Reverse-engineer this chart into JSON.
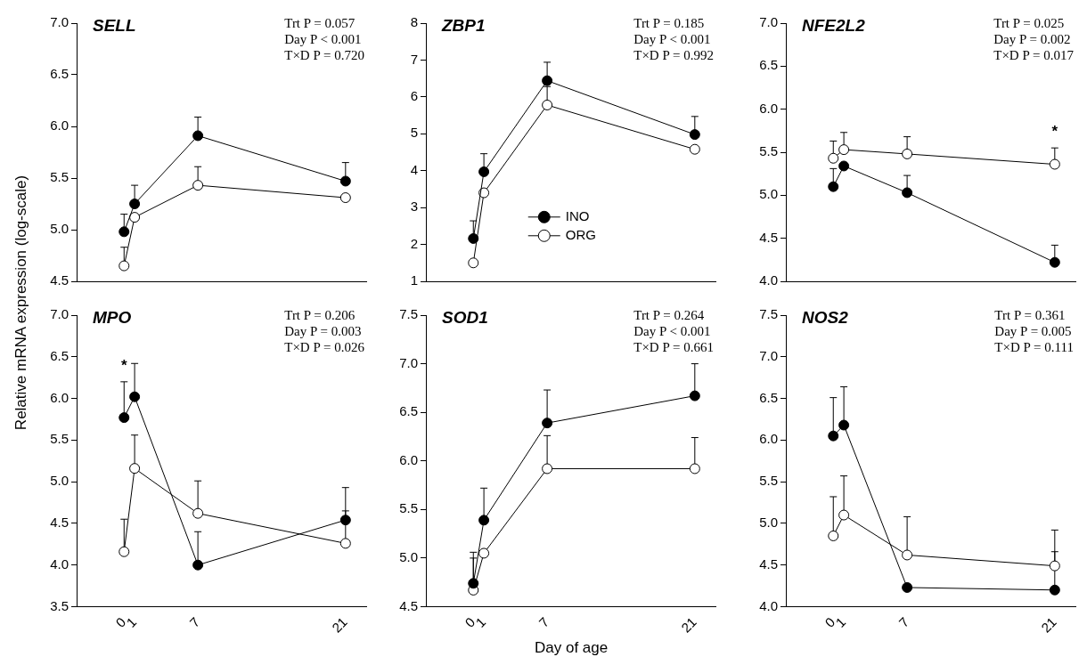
{
  "chart_data": [
    {
      "type": "line",
      "title": "SELL",
      "ylabel": "Relative mRNA expression (log-scale)",
      "x": [
        0,
        1,
        7,
        21
      ],
      "xlim": [
        -4.5,
        23
      ],
      "xticks": [
        0,
        1,
        7,
        21
      ],
      "ylim": [
        4.5,
        7.0
      ],
      "yticks": [
        {
          "value": 4.5,
          "label": "4.5"
        },
        {
          "value": 5,
          "label": "5.0"
        },
        {
          "value": 5.5,
          "label": "5.5"
        },
        {
          "value": 6,
          "label": "6.0"
        },
        {
          "value": 6.5,
          "label": "6.5"
        },
        {
          "value": 7,
          "label": "7.0"
        }
      ],
      "tick_labels": "y",
      "marker": "circle",
      "line_style": "solid",
      "annotations": [
        "Trt P = 0.057",
        "Day P < 0.001",
        "T×D P = 0.720"
      ],
      "series": [
        {
          "color": "#000000",
          "values": [
            4.98,
            5.25,
            5.91,
            5.47
          ],
          "errors": [
            [
              4.98,
              5.15
            ],
            [
              5.25,
              5.43
            ],
            [
              5.91,
              6.09
            ],
            [
              5.47,
              5.65
            ]
          ]
        },
        {
          "color": "#ffffff",
          "values": [
            4.65,
            5.12,
            5.43,
            5.31
          ],
          "errors": [
            [
              4.65,
              4.83
            ],
            null,
            [
              5.43,
              5.61
            ],
            null
          ]
        }
      ]
    },
    {
      "type": "line",
      "title": "ZBP1",
      "x": [
        0,
        1,
        7,
        21
      ],
      "xlim": [
        -4.5,
        23
      ],
      "xticks": [
        0,
        1,
        7,
        21
      ],
      "ylim": [
        1,
        8
      ],
      "yticks": [
        1,
        2,
        3,
        4,
        5,
        6,
        7,
        8
      ],
      "tick_labels": "y",
      "marker": "circle",
      "line_style": "solid",
      "legend": "bottom",
      "annotations": [
        "Trt P = 0.185",
        "Day P < 0.001",
        "T×D P = 0.992"
      ],
      "series": [
        {
          "name": "INO",
          "color": "#000000",
          "values": [
            2.16,
            3.97,
            6.44,
            4.98
          ],
          "errors": [
            [
              2.16,
              2.64
            ],
            [
              3.97,
              4.46
            ],
            [
              6.44,
              6.94
            ],
            [
              4.98,
              5.47
            ]
          ]
        },
        {
          "name": "ORG",
          "color": "#ffffff",
          "values": [
            1.5,
            3.4,
            5.78,
            4.58
          ],
          "errors": [
            null,
            null,
            [
              5.78,
              6.28
            ],
            null
          ]
        }
      ]
    },
    {
      "type": "line",
      "title": "NFE2L2",
      "x": [
        0,
        1,
        7,
        21
      ],
      "xlim": [
        -4.5,
        23
      ],
      "xticks": [
        0,
        1,
        7,
        21
      ],
      "ylim": [
        4.0,
        7.0
      ],
      "yticks": [
        {
          "value": 4,
          "label": "4.0"
        },
        {
          "value": 4.5,
          "label": "4.5"
        },
        {
          "value": 5,
          "label": "5.0"
        },
        {
          "value": 5.5,
          "label": "5.5"
        },
        {
          "value": 6,
          "label": "6.0"
        },
        {
          "value": 6.5,
          "label": "6.5"
        },
        {
          "value": 7,
          "label": "7.0"
        }
      ],
      "tick_labels": "y",
      "marker": "circle",
      "line_style": "solid",
      "annotations": [
        "Trt P = 0.025",
        "Day P = 0.002",
        "T×D P = 0.017",
        {
          "text": "*",
          "x": 21,
          "y": 5.55
        }
      ],
      "series": [
        {
          "color": "#000000",
          "values": [
            5.1,
            5.34,
            5.03,
            4.22
          ],
          "errors": [
            [
              5.1,
              5.31
            ],
            null,
            [
              5.03,
              5.23
            ],
            [
              4.22,
              4.42
            ]
          ]
        },
        {
          "color": "#ffffff",
          "values": [
            5.43,
            5.53,
            5.48,
            5.36
          ],
          "errors": [
            [
              5.43,
              5.63
            ],
            [
              5.53,
              5.73
            ],
            [
              5.48,
              5.68
            ],
            [
              5.36,
              5.55
            ]
          ]
        }
      ]
    },
    {
      "type": "line",
      "title": "MPO",
      "x": [
        0,
        1,
        7,
        21
      ],
      "xlim": [
        -4.5,
        23
      ],
      "xticks": [
        0,
        1,
        7,
        21
      ],
      "ylim": [
        3.5,
        7.0
      ],
      "yticks": [
        {
          "value": 3.5,
          "label": "3.5"
        },
        {
          "value": 4,
          "label": "4.0"
        },
        {
          "value": 4.5,
          "label": "4.5"
        },
        {
          "value": 5,
          "label": "5.0"
        },
        {
          "value": 5.5,
          "label": "5.5"
        },
        {
          "value": 6,
          "label": "6.0"
        },
        {
          "value": 6.5,
          "label": "6.5"
        },
        {
          "value": 7,
          "label": "7.0"
        }
      ],
      "marker": "circle",
      "line_style": "solid",
      "annotations": [
        "Trt P = 0.206",
        "Day P = 0.003",
        "T×D P = 0.026",
        {
          "text": "*",
          "x": 0,
          "y": 6.2
        }
      ],
      "series": [
        {
          "color": "#000000",
          "values": [
            5.77,
            6.02,
            4.0,
            4.54
          ],
          "errors": [
            [
              5.77,
              6.2
            ],
            [
              6.02,
              6.42
            ],
            [
              4.0,
              4.4
            ],
            [
              4.54,
              4.93
            ]
          ]
        },
        {
          "color": "#ffffff",
          "values": [
            4.16,
            5.16,
            4.62,
            4.26
          ],
          "errors": [
            [
              4.16,
              4.55
            ],
            [
              5.16,
              5.56
            ],
            [
              4.62,
              5.01
            ],
            [
              4.26,
              4.65
            ]
          ]
        }
      ]
    },
    {
      "type": "line",
      "title": "SOD1",
      "xlabel": "Day of age",
      "x": [
        0,
        1,
        7,
        21
      ],
      "xlim": [
        -4.5,
        23
      ],
      "xticks": [
        0,
        1,
        7,
        21
      ],
      "ylim": [
        4.5,
        7.5
      ],
      "yticks": [
        {
          "value": 4.5,
          "label": "4.5"
        },
        {
          "value": 5,
          "label": "5.0"
        },
        {
          "value": 5.5,
          "label": "5.5"
        },
        {
          "value": 6,
          "label": "6.0"
        },
        {
          "value": 6.5,
          "label": "6.5"
        },
        {
          "value": 7,
          "label": "7.0"
        },
        {
          "value": 7.5,
          "label": "7.5"
        }
      ],
      "marker": "circle",
      "line_style": "solid",
      "annotations": [
        "Trt P = 0.264",
        "Day P < 0.001",
        "T×D P = 0.661"
      ],
      "series": [
        {
          "color": "#000000",
          "values": [
            4.74,
            5.39,
            6.39,
            6.67
          ],
          "errors": [
            [
              4.74,
              5.06
            ],
            [
              5.39,
              5.72
            ],
            [
              6.39,
              6.73
            ],
            [
              6.67,
              7.0
            ]
          ]
        },
        {
          "color": "#ffffff",
          "values": [
            4.67,
            5.05,
            5.92,
            5.92
          ],
          "errors": [
            [
              4.67,
              5.0
            ],
            null,
            [
              5.92,
              6.26
            ],
            [
              5.92,
              6.24
            ]
          ]
        }
      ]
    },
    {
      "type": "line",
      "title": "NOS2",
      "x": [
        0,
        1,
        7,
        21
      ],
      "xlim": [
        -4.5,
        23
      ],
      "xticks": [
        0,
        1,
        7,
        21
      ],
      "ylim": [
        4.0,
        7.5
      ],
      "yticks": [
        {
          "value": 4,
          "label": "4.0"
        },
        {
          "value": 4.5,
          "label": "4.5"
        },
        {
          "value": 5,
          "label": "5.0"
        },
        {
          "value": 5.5,
          "label": "5.5"
        },
        {
          "value": 6,
          "label": "6.0"
        },
        {
          "value": 6.5,
          "label": "6.5"
        },
        {
          "value": 7,
          "label": "7.0"
        },
        {
          "value": 7.5,
          "label": "7.5"
        }
      ],
      "marker": "circle",
      "line_style": "solid",
      "annotations": [
        "Trt P = 0.361",
        "Day P = 0.005",
        "T×D P = 0.111"
      ],
      "series": [
        {
          "color": "#000000",
          "values": [
            6.05,
            6.18,
            4.23,
            4.2
          ],
          "errors": [
            [
              6.05,
              6.51
            ],
            [
              6.18,
              6.64
            ],
            null,
            [
              4.2,
              4.66
            ]
          ]
        },
        {
          "color": "#ffffff",
          "values": [
            4.85,
            5.1,
            4.62,
            4.49
          ],
          "errors": [
            [
              4.85,
              5.32
            ],
            [
              5.1,
              5.57
            ],
            [
              4.62,
              5.08
            ],
            [
              4.49,
              4.92
            ]
          ]
        }
      ]
    }
  ]
}
